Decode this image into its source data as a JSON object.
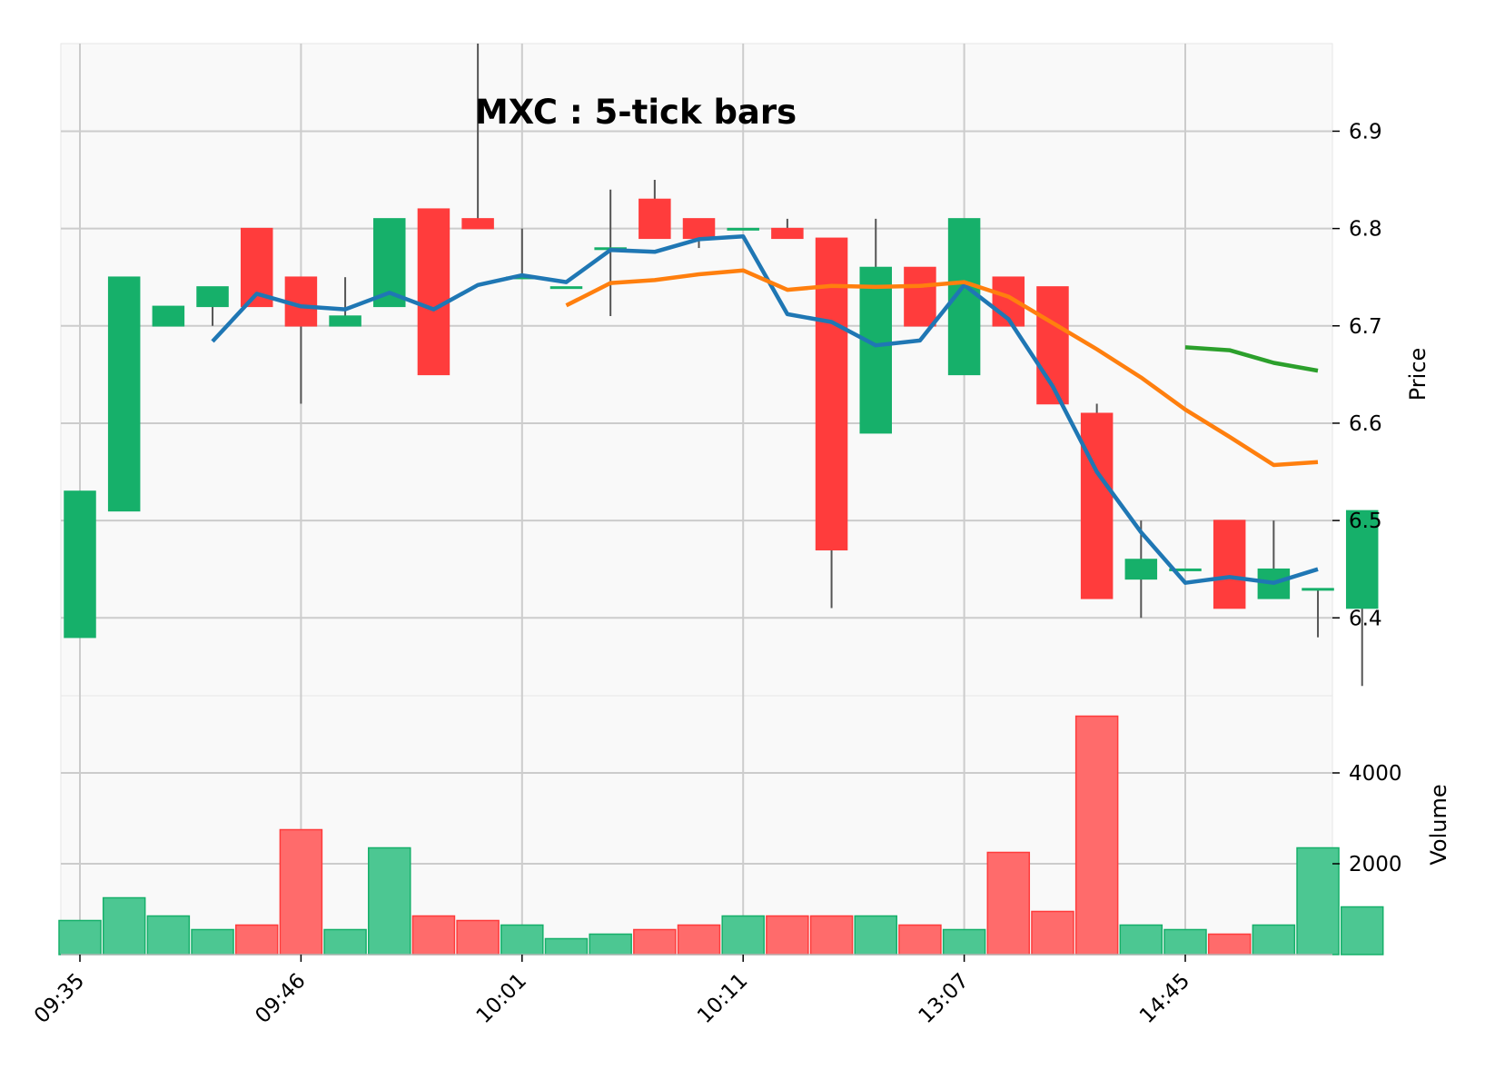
{
  "chart_data": {
    "type": "candlestick",
    "title": "MXC : 5-tick bars",
    "ylabel": "Price",
    "ylabel_lower": "Volume",
    "ylim": [
      6.32,
      6.99
    ],
    "volume_ylim": [
      0,
      5700
    ],
    "yticks": [
      6.4,
      6.5,
      6.6,
      6.7,
      6.8,
      6.9
    ],
    "volume_yticks": [
      2000,
      4000
    ],
    "xtick_labels": [
      {
        "index": 0,
        "label": "09:35"
      },
      {
        "index": 5,
        "label": "09:46"
      },
      {
        "index": 10,
        "label": "10:01"
      },
      {
        "index": 15,
        "label": "10:11"
      },
      {
        "index": 20,
        "label": "13:07"
      },
      {
        "index": 25,
        "label": "14:45"
      }
    ],
    "candles": [
      {
        "o": 6.38,
        "h": 6.53,
        "l": 6.38,
        "c": 6.53,
        "v": 750
      },
      {
        "o": 6.51,
        "h": 6.75,
        "l": 6.51,
        "c": 6.75,
        "v": 1250
      },
      {
        "o": 6.7,
        "h": 6.72,
        "l": 6.7,
        "c": 6.72,
        "v": 850
      },
      {
        "o": 6.72,
        "h": 6.74,
        "l": 6.7,
        "c": 6.74,
        "v": 550
      },
      {
        "o": 6.8,
        "h": 6.8,
        "l": 6.72,
        "c": 6.72,
        "v": 650
      },
      {
        "o": 6.75,
        "h": 6.75,
        "l": 6.62,
        "c": 6.7,
        "v": 2750
      },
      {
        "o": 6.7,
        "h": 6.75,
        "l": 6.7,
        "c": 6.71,
        "v": 550
      },
      {
        "o": 6.72,
        "h": 6.81,
        "l": 6.72,
        "c": 6.81,
        "v": 2350
      },
      {
        "o": 6.82,
        "h": 6.82,
        "l": 6.65,
        "c": 6.65,
        "v": 850
      },
      {
        "o": 6.81,
        "h": 6.99,
        "l": 6.8,
        "c": 6.8,
        "v": 750
      },
      {
        "o": 6.75,
        "h": 6.8,
        "l": 6.75,
        "c": 6.75,
        "v": 650
      },
      {
        "o": 6.74,
        "h": 6.74,
        "l": 6.74,
        "c": 6.74,
        "v": 350
      },
      {
        "o": 6.78,
        "h": 6.84,
        "l": 6.71,
        "c": 6.78,
        "v": 450
      },
      {
        "o": 6.83,
        "h": 6.85,
        "l": 6.79,
        "c": 6.79,
        "v": 550
      },
      {
        "o": 6.81,
        "h": 6.81,
        "l": 6.78,
        "c": 6.79,
        "v": 650
      },
      {
        "o": 6.8,
        "h": 6.8,
        "l": 6.8,
        "c": 6.8,
        "v": 850
      },
      {
        "o": 6.8,
        "h": 6.81,
        "l": 6.79,
        "c": 6.79,
        "v": 850
      },
      {
        "o": 6.79,
        "h": 6.79,
        "l": 6.41,
        "c": 6.47,
        "v": 850
      },
      {
        "o": 6.59,
        "h": 6.81,
        "l": 6.59,
        "c": 6.76,
        "v": 850
      },
      {
        "o": 6.76,
        "h": 6.76,
        "l": 6.7,
        "c": 6.7,
        "v": 650
      },
      {
        "o": 6.65,
        "h": 6.81,
        "l": 6.65,
        "c": 6.81,
        "v": 550
      },
      {
        "o": 6.75,
        "h": 6.75,
        "l": 6.7,
        "c": 6.7,
        "v": 2250
      },
      {
        "o": 6.74,
        "h": 6.74,
        "l": 6.62,
        "c": 6.62,
        "v": 950
      },
      {
        "o": 6.61,
        "h": 6.62,
        "l": 6.42,
        "c": 6.42,
        "v": 5250
      },
      {
        "o": 6.44,
        "h": 6.5,
        "l": 6.4,
        "c": 6.46,
        "v": 650
      },
      {
        "o": 6.45,
        "h": 6.45,
        "l": 6.45,
        "c": 6.45,
        "v": 550
      },
      {
        "o": 6.5,
        "h": 6.5,
        "l": 6.41,
        "c": 6.41,
        "v": 450
      },
      {
        "o": 6.42,
        "h": 6.5,
        "l": 6.42,
        "c": 6.45,
        "v": 650
      },
      {
        "o": 6.43,
        "h": 6.43,
        "l": 6.38,
        "c": 6.43,
        "v": 2350
      },
      {
        "o": 6.41,
        "h": 6.51,
        "l": 6.33,
        "c": 6.51,
        "v": 1050
      }
    ],
    "moving_averages": [
      {
        "color": "#1f77b4",
        "start_index": 3,
        "values": [
          6.684,
          6.733,
          6.72,
          6.717,
          6.734,
          6.717,
          6.742,
          6.752,
          6.745,
          6.778,
          6.776,
          6.789,
          6.792,
          6.712,
          6.704,
          6.68,
          6.685,
          6.742,
          6.707,
          6.638,
          6.55,
          6.488,
          6.436,
          6.442,
          6.436,
          6.45
        ]
      },
      {
        "color": "#ff7f0e",
        "start_index": 11,
        "values": [
          6.721,
          6.744,
          6.747,
          6.753,
          6.757,
          6.737,
          6.741,
          6.74,
          6.741,
          6.745,
          6.73,
          6.703,
          6.676,
          6.647,
          6.614,
          6.586,
          6.557,
          6.56
        ]
      },
      {
        "color": "#2ca02c",
        "start_index": 25,
        "values": [
          6.678,
          6.675,
          6.662,
          6.654
        ]
      }
    ],
    "colors": {
      "up": "#16b06a",
      "down": "#ff3c3c",
      "up_volume": "#4cc792",
      "down_volume": "#ff6b6b",
      "wick": "#555555",
      "panel_bg": "#f9f9f9",
      "grid": "#cccccc"
    },
    "grid": true
  }
}
